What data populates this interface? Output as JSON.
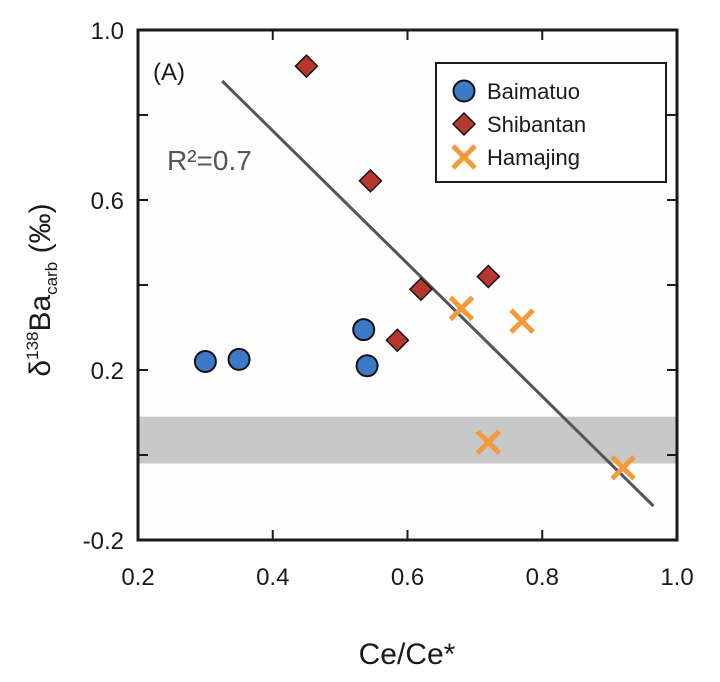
{
  "chart_data": {
    "type": "scatter",
    "panel_label": "(A)",
    "xlabel": "Ce/Ce*",
    "ylabel": {
      "prefix": "δ",
      "superscript": "138",
      "main": "Ba",
      "subscript": "carb",
      "suffix": " (‰)"
    },
    "xlim": [
      0.2,
      1.0
    ],
    "ylim": [
      -0.2,
      1.0
    ],
    "xticks": [
      {
        "value": 0.2,
        "label": "0.2"
      },
      {
        "value": 0.4,
        "label": "0.4"
      },
      {
        "value": 0.6,
        "label": "0.6"
      },
      {
        "value": 0.8,
        "label": "0.8"
      },
      {
        "value": 1.0,
        "label": "1.0"
      }
    ],
    "yticks": [
      {
        "value": -0.2,
        "label": "-0.2"
      },
      {
        "value": 0.2,
        "label": "0.2"
      },
      {
        "value": 0.6,
        "label": "0.6"
      },
      {
        "value": 1.0,
        "label": "1.0"
      }
    ],
    "grid": false,
    "legend_position": "top-right",
    "shaded_band": {
      "y_min": -0.02,
      "y_max": 0.09,
      "color": "#c8c8c8"
    },
    "series": [
      {
        "name": "Baimatuo",
        "marker": "circle",
        "color": "#3d79c4",
        "points": [
          {
            "x": 0.3,
            "y": 0.22
          },
          {
            "x": 0.35,
            "y": 0.225
          },
          {
            "x": 0.535,
            "y": 0.295
          },
          {
            "x": 0.54,
            "y": 0.21
          }
        ]
      },
      {
        "name": "Shibantan",
        "marker": "diamond",
        "color": "#b7372e",
        "points": [
          {
            "x": 0.45,
            "y": 0.915
          },
          {
            "x": 0.545,
            "y": 0.645
          },
          {
            "x": 0.585,
            "y": 0.27
          },
          {
            "x": 0.62,
            "y": 0.39
          },
          {
            "x": 0.72,
            "y": 0.42
          }
        ]
      },
      {
        "name": "Hamajing",
        "marker": "x",
        "color": "#f59a3a",
        "points": [
          {
            "x": 0.68,
            "y": 0.345
          },
          {
            "x": 0.77,
            "y": 0.315
          },
          {
            "x": 0.72,
            "y": 0.03
          },
          {
            "x": 0.92,
            "y": -0.03
          }
        ]
      }
    ],
    "regression": {
      "label": "R²=0.7",
      "x1": 0.325,
      "y1": 0.88,
      "x2": 0.965,
      "y2": -0.12,
      "color": "#555555"
    }
  }
}
